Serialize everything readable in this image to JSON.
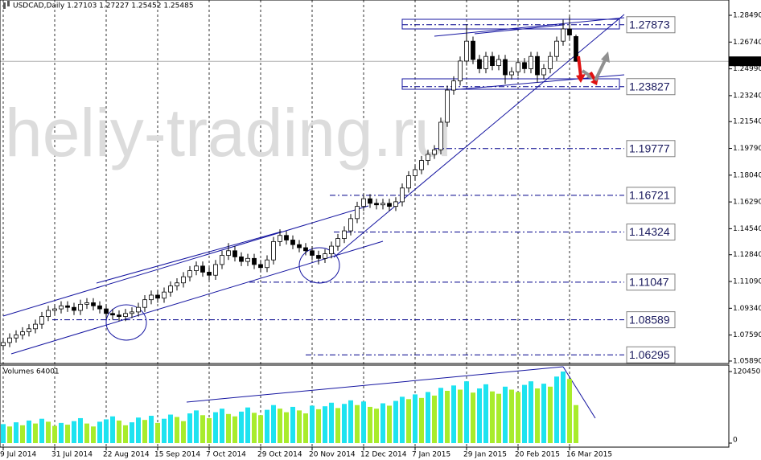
{
  "chart_data": [
    {
      "type": "candlestick",
      "title": "USDCAD,Daily 1.27103 1.27227 1.25452 1.25485",
      "watermark": "heliy-trading.ru",
      "categories": [
        "9 Jul 2014",
        null,
        null,
        null,
        null,
        null,
        null,
        null,
        "31 Jul 2014",
        null,
        null,
        null,
        null,
        null,
        null,
        null,
        "22 Aug 2014",
        null,
        null,
        null,
        null,
        null,
        null,
        null,
        "15 Sep 2014",
        null,
        null,
        null,
        null,
        null,
        null,
        null,
        "7 Oct 2014",
        null,
        null,
        null,
        null,
        null,
        null,
        null,
        "29 Oct 2014",
        null,
        null,
        null,
        null,
        null,
        null,
        null,
        "20 Nov 2014",
        null,
        null,
        null,
        null,
        null,
        null,
        null,
        "12 Dec 2014",
        null,
        null,
        null,
        null,
        null,
        null,
        null,
        "7 Jan 2015",
        null,
        null,
        null,
        null,
        null,
        null,
        null,
        "29 Jan 2015",
        null,
        null,
        null,
        null,
        null,
        null,
        null,
        "20 Feb 2015",
        null,
        null,
        null,
        null,
        null,
        null,
        null,
        "16 Mar 2015",
        null
      ],
      "open": [
        1.069,
        1.071,
        1.074,
        1.076,
        1.078,
        1.08,
        1.083,
        1.088,
        1.092,
        1.093,
        1.095,
        1.094,
        1.092,
        1.096,
        1.097,
        1.095,
        1.093,
        1.09,
        1.089,
        1.088,
        1.09,
        1.091,
        1.094,
        1.099,
        1.102,
        1.1,
        1.104,
        1.108,
        1.11,
        1.114,
        1.118,
        1.121,
        1.117,
        1.115,
        1.122,
        1.128,
        1.131,
        1.127,
        1.124,
        1.126,
        1.122,
        1.12,
        1.125,
        1.137,
        1.141,
        1.138,
        1.135,
        1.133,
        1.131,
        1.128,
        1.126,
        1.129,
        1.134,
        1.139,
        1.144,
        1.152,
        1.16,
        1.165,
        1.162,
        1.161,
        1.162,
        1.16,
        1.163,
        1.172,
        1.18,
        1.184,
        1.19,
        1.194,
        1.197,
        1.215,
        1.236,
        1.242,
        1.255,
        1.268,
        1.256,
        1.25,
        1.258,
        1.252,
        1.256,
        1.246,
        1.248,
        1.254,
        1.25,
        1.258,
        1.246,
        1.25,
        1.258,
        1.268,
        1.276,
        1.27103
      ],
      "high": [
        1.074,
        1.077,
        1.079,
        1.081,
        1.083,
        1.086,
        1.091,
        1.095,
        1.096,
        1.098,
        1.098,
        1.097,
        1.099,
        1.1,
        1.1,
        1.098,
        1.096,
        1.093,
        1.092,
        1.093,
        1.094,
        1.097,
        1.102,
        1.105,
        1.105,
        1.107,
        1.111,
        1.113,
        1.117,
        1.121,
        1.124,
        1.124,
        1.12,
        1.125,
        1.131,
        1.136,
        1.134,
        1.13,
        1.129,
        1.129,
        1.125,
        1.128,
        1.14,
        1.145,
        1.144,
        1.141,
        1.138,
        1.136,
        1.134,
        1.131,
        1.132,
        1.137,
        1.142,
        1.147,
        1.155,
        1.163,
        1.168,
        1.168,
        1.165,
        1.165,
        1.165,
        1.166,
        1.175,
        1.183,
        1.187,
        1.193,
        1.197,
        1.2,
        1.218,
        1.239,
        1.245,
        1.258,
        1.279,
        1.271,
        1.259,
        1.261,
        1.261,
        1.259,
        1.259,
        1.251,
        1.257,
        1.257,
        1.261,
        1.261,
        1.253,
        1.261,
        1.271,
        1.282,
        1.284,
        1.27227
      ],
      "low": [
        1.066,
        1.068,
        1.071,
        1.073,
        1.075,
        1.077,
        1.08,
        1.085,
        1.089,
        1.09,
        1.091,
        1.089,
        1.089,
        1.093,
        1.092,
        1.09,
        1.087,
        1.086,
        1.085,
        1.085,
        1.087,
        1.088,
        1.091,
        1.096,
        1.097,
        1.097,
        1.101,
        1.105,
        1.107,
        1.111,
        1.115,
        1.114,
        1.112,
        1.112,
        1.119,
        1.125,
        1.124,
        1.121,
        1.121,
        1.119,
        1.117,
        1.117,
        1.122,
        1.134,
        1.135,
        1.132,
        1.13,
        1.128,
        1.125,
        1.122,
        1.123,
        1.126,
        1.131,
        1.136,
        1.141,
        1.149,
        1.157,
        1.159,
        1.158,
        1.158,
        1.157,
        1.157,
        1.16,
        1.169,
        1.177,
        1.181,
        1.187,
        1.191,
        1.194,
        1.212,
        1.233,
        1.239,
        1.252,
        1.253,
        1.247,
        1.247,
        1.249,
        1.249,
        1.24,
        1.243,
        1.245,
        1.247,
        1.247,
        1.241,
        1.243,
        1.247,
        1.255,
        1.265,
        1.269,
        1.25452
      ],
      "close": [
        1.071,
        1.074,
        1.076,
        1.078,
        1.08,
        1.083,
        1.088,
        1.092,
        1.093,
        1.095,
        1.094,
        1.092,
        1.096,
        1.097,
        1.095,
        1.093,
        1.09,
        1.089,
        1.088,
        1.09,
        1.091,
        1.094,
        1.099,
        1.102,
        1.1,
        1.104,
        1.108,
        1.11,
        1.114,
        1.118,
        1.121,
        1.117,
        1.115,
        1.122,
        1.128,
        1.131,
        1.127,
        1.124,
        1.126,
        1.122,
        1.12,
        1.125,
        1.137,
        1.141,
        1.138,
        1.135,
        1.133,
        1.131,
        1.128,
        1.126,
        1.129,
        1.134,
        1.139,
        1.144,
        1.152,
        1.16,
        1.165,
        1.162,
        1.161,
        1.162,
        1.16,
        1.163,
        1.172,
        1.18,
        1.184,
        1.19,
        1.194,
        1.197,
        1.215,
        1.236,
        1.242,
        1.255,
        1.268,
        1.256,
        1.25,
        1.258,
        1.252,
        1.256,
        1.246,
        1.248,
        1.254,
        1.25,
        1.258,
        1.246,
        1.25,
        1.258,
        1.268,
        1.276,
        1.272,
        1.25485
      ],
      "up_color": "#ffffff",
      "down_color": "#000000",
      "ylim": [
        1.0573,
        1.2949
      ],
      "yticks": [
        {
          "value": 1.2849,
          "label": "1.28490"
        },
        {
          "value": 1.2674,
          "label": "1.26740"
        },
        {
          "value": 1.2499,
          "label": "1.24990"
        },
        {
          "value": 1.2324,
          "label": "1.23240"
        },
        {
          "value": 1.2154,
          "label": "1.21540"
        },
        {
          "value": 1.1979,
          "label": "1.19790"
        },
        {
          "value": 1.1804,
          "label": "1.18040"
        },
        {
          "value": 1.1629,
          "label": "1.16290"
        },
        {
          "value": 1.1454,
          "label": "1.14540"
        },
        {
          "value": 1.1284,
          "label": "1.12840"
        },
        {
          "value": 1.1109,
          "label": "1.11090"
        },
        {
          "value": 1.0934,
          "label": "1.09340"
        },
        {
          "value": 1.0759,
          "label": "1.07590"
        },
        {
          "value": 1.0589,
          "label": "1.05890"
        }
      ],
      "levels": [
        1.27873,
        1.23827,
        1.19777,
        1.16721,
        1.14324,
        1.11047,
        1.08589,
        1.06295
      ],
      "level_color": "#00008b",
      "grid": "x"
    },
    {
      "type": "bar",
      "title": "Volumes 64001",
      "values": [
        32000,
        28000,
        35000,
        30000,
        38000,
        33000,
        41000,
        36000,
        29000,
        34000,
        31000,
        37000,
        42000,
        33000,
        28000,
        36000,
        40000,
        45000,
        38000,
        30000,
        35000,
        43000,
        39000,
        46000,
        34000,
        41000,
        48000,
        44000,
        37000,
        50000,
        55000,
        47000,
        42000,
        52000,
        58000,
        49000,
        45000,
        53000,
        60000,
        51000,
        47000,
        56000,
        64000,
        58000,
        52000,
        61000,
        55000,
        50000,
        63000,
        57000,
        62000,
        68000,
        59000,
        66000,
        72000,
        64000,
        70000,
        61000,
        58000,
        67000,
        63000,
        71000,
        78000,
        74000,
        82000,
        76000,
        86000,
        80000,
        93000,
        88000,
        97000,
        90000,
        104000,
        85000,
        92000,
        99000,
        87000,
        83000,
        95000,
        90000,
        86000,
        98000,
        104000,
        92000,
        100000,
        95000,
        112000,
        120450,
        108000,
        64001
      ],
      "up_color": "#1ee3f0",
      "down_color": "#a8ec2c",
      "ylim": [
        0,
        128570
      ],
      "yticks": [
        120450,
        0
      ]
    }
  ]
}
